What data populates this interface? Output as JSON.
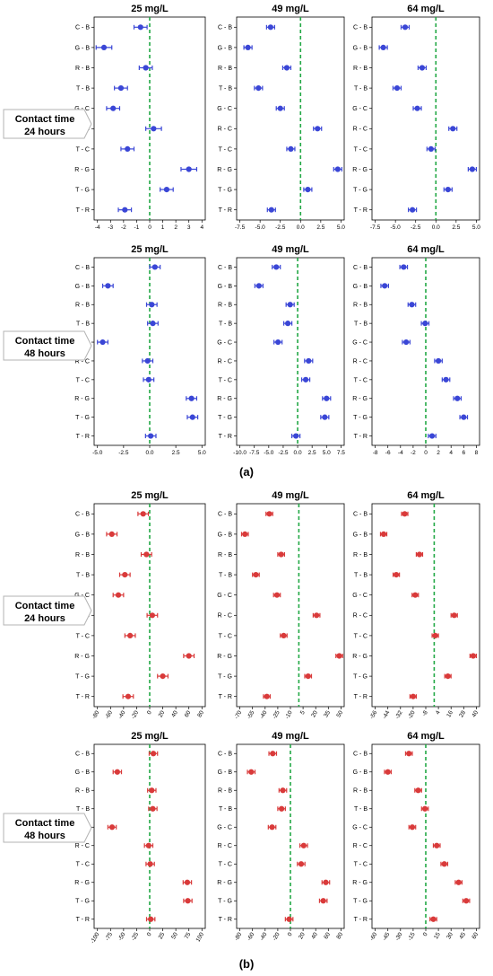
{
  "figure": {
    "part_a_label": "(a)",
    "part_b_label": "(b)",
    "categories": [
      "C - B",
      "G - B",
      "R - B",
      "T - B",
      "G - C",
      "R - C",
      "T - C",
      "R - G",
      "T - G",
      "T - R"
    ],
    "contact_time_labels": [
      [
        "Contact time",
        "24 hours"
      ],
      [
        "Contact time",
        "48 hours"
      ],
      [
        "Contact time",
        "24 hours"
      ],
      [
        "Contact time",
        "48 hours"
      ]
    ],
    "colors": {
      "blue": "#3a46d6",
      "red": "#d93a3a",
      "zero_line": "#22a845"
    }
  },
  "chart_data": [
    {
      "type": "scatter",
      "part": "a",
      "title": "25 mg/L",
      "contact_time": "24 hours",
      "color": "blue",
      "xlim": [
        -4,
        4
      ],
      "xticks": [
        -4,
        -3,
        -2,
        -1,
        0,
        1,
        2,
        3,
        4
      ],
      "estimates": [
        -0.7,
        -3.5,
        -0.3,
        -2.2,
        -2.8,
        0.3,
        -1.7,
        3.0,
        1.3,
        -1.9
      ],
      "ci_halfwidth": [
        0.5,
        0.6,
        0.5,
        0.5,
        0.5,
        0.6,
        0.5,
        0.6,
        0.5,
        0.5
      ]
    },
    {
      "type": "scatter",
      "part": "a",
      "title": "49 mg/L",
      "contact_time": "24 hours",
      "color": "blue",
      "xlim": [
        -7.5,
        5
      ],
      "xticks": [
        -7.5,
        -5.0,
        -2.5,
        0.0,
        2.5,
        5.0
      ],
      "estimates": [
        -3.7,
        -6.5,
        -1.7,
        -5.2,
        -2.5,
        2.1,
        -1.2,
        4.6,
        0.9,
        -3.6
      ],
      "ci_halfwidth": [
        0.5,
        0.5,
        0.5,
        0.5,
        0.5,
        0.5,
        0.5,
        0.5,
        0.5,
        0.5
      ]
    },
    {
      "type": "scatter",
      "part": "a",
      "title": "64 mg/L",
      "contact_time": "24 hours",
      "color": "blue",
      "xlim": [
        -7.5,
        5
      ],
      "xticks": [
        -7.5,
        -5.0,
        -2.5,
        0.0,
        2.5,
        5.0
      ],
      "estimates": [
        -3.8,
        -6.5,
        -1.7,
        -4.8,
        -2.3,
        2.1,
        -0.6,
        4.5,
        1.5,
        -2.9
      ],
      "ci_halfwidth": [
        0.5,
        0.5,
        0.5,
        0.5,
        0.5,
        0.5,
        0.5,
        0.5,
        0.5,
        0.5
      ]
    },
    {
      "type": "scatter",
      "part": "a",
      "title": "25 mg/L",
      "contact_time": "48 hours",
      "color": "blue",
      "xlim": [
        -5,
        5
      ],
      "xticks": [
        -5.0,
        -2.5,
        0.0,
        2.5,
        5.0
      ],
      "estimates": [
        0.5,
        -4.0,
        0.2,
        0.3,
        -4.5,
        -0.2,
        -0.1,
        4.0,
        4.1,
        0.1
      ],
      "ci_halfwidth": [
        0.5,
        0.5,
        0.5,
        0.5,
        0.5,
        0.5,
        0.5,
        0.5,
        0.5,
        0.5
      ]
    },
    {
      "type": "scatter",
      "part": "a",
      "title": "49 mg/L",
      "contact_time": "48 hours",
      "color": "blue",
      "xlim": [
        -10,
        7.5
      ],
      "xticks": [
        -10.0,
        -7.5,
        -5.0,
        -2.5,
        0.0,
        2.5,
        5.0,
        7.5
      ],
      "estimates": [
        -3.7,
        -6.7,
        -1.3,
        -1.7,
        -3.4,
        1.9,
        1.4,
        5.0,
        4.7,
        -0.3
      ],
      "ci_halfwidth": [
        0.7,
        0.7,
        0.7,
        0.7,
        0.7,
        0.7,
        0.7,
        0.7,
        0.7,
        0.7
      ]
    },
    {
      "type": "scatter",
      "part": "a",
      "title": "64 mg/L",
      "contact_time": "48 hours",
      "color": "blue",
      "xlim": [
        -8,
        8
      ],
      "xticks": [
        -8,
        -6,
        -4,
        -2,
        0,
        2,
        4,
        6,
        8
      ],
      "estimates": [
        -3.5,
        -6.5,
        -2.2,
        -0.1,
        -3.1,
        2.0,
        3.2,
        5.0,
        6.0,
        1.0
      ],
      "ci_halfwidth": [
        0.6,
        0.6,
        0.6,
        0.6,
        0.6,
        0.6,
        0.6,
        0.6,
        0.6,
        0.6
      ]
    },
    {
      "type": "scatter",
      "part": "b",
      "title": "25 mg/L",
      "contact_time": "24 hours",
      "color": "red",
      "xlim": [
        -80,
        80
      ],
      "xticks": [
        -80,
        -60,
        -40,
        -20,
        0,
        20,
        40,
        60,
        80
      ],
      "estimates": [
        -10,
        -58,
        -5,
        -38,
        -48,
        4,
        -30,
        60,
        20,
        -33
      ],
      "ci_halfwidth": [
        8,
        8,
        8,
        8,
        8,
        8,
        8,
        8,
        8,
        8
      ]
    },
    {
      "type": "scatter",
      "part": "b",
      "title": "49 mg/L",
      "contact_time": "24 hours",
      "color": "red",
      "xlim": [
        -70,
        50
      ],
      "xticks": [
        -70,
        -55,
        -40,
        -25,
        -10,
        5,
        20,
        35,
        50
      ],
      "estimates": [
        -35,
        -64,
        -21,
        -51,
        -26,
        21,
        -18,
        48,
        11,
        -38
      ],
      "ci_halfwidth": [
        4,
        4,
        4,
        4,
        4,
        4,
        4,
        4,
        4,
        4
      ]
    },
    {
      "type": "scatter",
      "part": "b",
      "title": "64 mg/L",
      "contact_time": "24 hours",
      "color": "red",
      "xlim": [
        -56,
        40
      ],
      "xticks": [
        -56,
        -44,
        -32,
        -20,
        -8,
        4,
        16,
        28,
        40
      ],
      "estimates": [
        -28,
        -48,
        -14,
        -36,
        -18,
        19,
        1,
        37,
        13,
        -20
      ],
      "ci_halfwidth": [
        3,
        3,
        3,
        3,
        3,
        3,
        3,
        3,
        3,
        3
      ]
    },
    {
      "type": "scatter",
      "part": "b",
      "title": "25 mg/L",
      "contact_time": "48 hours",
      "color": "red",
      "xlim": [
        -100,
        100
      ],
      "xticks": [
        -100,
        -75,
        -50,
        -25,
        0,
        25,
        50,
        75,
        100
      ],
      "estimates": [
        7,
        -62,
        4,
        6,
        -72,
        -2,
        1,
        72,
        73,
        2
      ],
      "ci_halfwidth": [
        8,
        8,
        8,
        8,
        8,
        8,
        8,
        8,
        8,
        8
      ]
    },
    {
      "type": "scatter",
      "part": "b",
      "title": "49 mg/L",
      "contact_time": "48 hours",
      "color": "red",
      "xlim": [
        -80,
        80
      ],
      "xticks": [
        -80,
        -60,
        -40,
        -20,
        0,
        20,
        40,
        60,
        80
      ],
      "estimates": [
        -28,
        -62,
        -12,
        -14,
        -29,
        21,
        17,
        56,
        52,
        -2
      ],
      "ci_halfwidth": [
        6,
        6,
        6,
        6,
        6,
        6,
        6,
        6,
        6,
        6
      ]
    },
    {
      "type": "scatter",
      "part": "b",
      "title": "64 mg/L",
      "contact_time": "48 hours",
      "color": "red",
      "xlim": [
        -60,
        60
      ],
      "xticks": [
        -60,
        -45,
        -30,
        -15,
        0,
        15,
        30,
        45,
        60
      ],
      "estimates": [
        -20,
        -45,
        -9,
        -1,
        -16,
        13,
        22,
        39,
        48,
        9
      ],
      "ci_halfwidth": [
        4,
        4,
        4,
        4,
        4,
        4,
        4,
        4,
        4,
        4
      ]
    }
  ]
}
